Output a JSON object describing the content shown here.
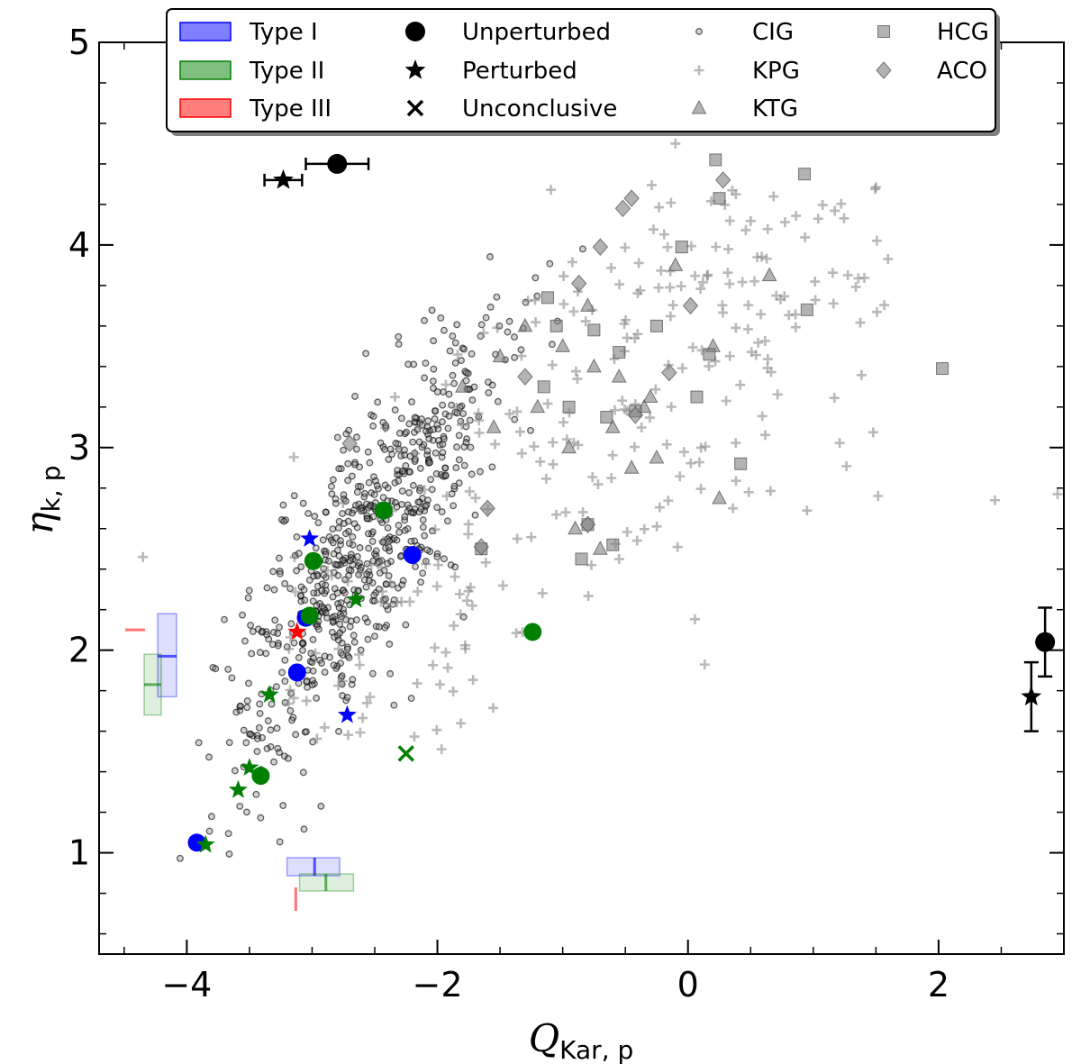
{
  "chart_data": {
    "type": "scatter",
    "xlabel": {
      "main": "Q",
      "sub": "Kar, p"
    },
    "ylabel": {
      "main": "η",
      "sub": "k, p"
    },
    "xlim": [
      -4.7,
      3.0
    ],
    "ylim": [
      0.5,
      5.0
    ],
    "xticks": [
      -4,
      -2,
      0,
      2
    ],
    "xtick_labels": [
      "−4",
      "−2",
      "0",
      "2"
    ],
    "yticks": [
      1,
      2,
      3,
      4,
      5
    ],
    "ytick_labels": [
      "1",
      "2",
      "3",
      "4",
      "5"
    ],
    "legend_position": "top",
    "legend": [
      {
        "label": "Type I",
        "kind": "patch",
        "color": "#0000ff"
      },
      {
        "label": "Type II",
        "kind": "patch",
        "color": "#008000"
      },
      {
        "label": "Type III",
        "kind": "patch",
        "color": "#ff0000"
      },
      {
        "label": "Unperturbed",
        "kind": "marker",
        "marker": "circle"
      },
      {
        "label": "Perturbed",
        "kind": "marker",
        "marker": "star"
      },
      {
        "label": "Unconclusive",
        "kind": "marker",
        "marker": "x"
      },
      {
        "label": "CIG",
        "kind": "marker",
        "marker": "small-circle"
      },
      {
        "label": "KPG",
        "kind": "marker",
        "marker": "plus"
      },
      {
        "label": "KTG",
        "kind": "marker",
        "marker": "triangle"
      },
      {
        "label": "HCG",
        "kind": "marker",
        "marker": "square"
      },
      {
        "label": "ACO",
        "kind": "marker",
        "marker": "diamond"
      }
    ],
    "colors": {
      "type1": "#0000ff",
      "type2": "#008000",
      "type3": "#ff0000",
      "reference": "#808080",
      "sample": "#000000"
    },
    "sample_points": [
      {
        "type": "I",
        "status": "unperturbed",
        "x": -3.92,
        "y": 1.05
      },
      {
        "type": "I",
        "status": "unperturbed",
        "x": -3.12,
        "y": 1.89
      },
      {
        "type": "I",
        "status": "unperturbed",
        "x": -3.05,
        "y": 2.16
      },
      {
        "type": "I",
        "status": "unperturbed",
        "x": -2.2,
        "y": 2.47
      },
      {
        "type": "I",
        "status": "perturbed",
        "x": -3.02,
        "y": 2.55
      },
      {
        "type": "I",
        "status": "perturbed",
        "x": -2.72,
        "y": 1.68
      },
      {
        "type": "II",
        "status": "unperturbed",
        "x": -3.41,
        "y": 1.38
      },
      {
        "type": "II",
        "status": "unperturbed",
        "x": -2.99,
        "y": 2.44
      },
      {
        "type": "II",
        "status": "unperturbed",
        "x": -2.43,
        "y": 2.69
      },
      {
        "type": "II",
        "status": "unperturbed",
        "x": -1.24,
        "y": 2.09
      },
      {
        "type": "II",
        "status": "unperturbed",
        "x": -3.02,
        "y": 2.17
      },
      {
        "type": "II",
        "status": "perturbed",
        "x": -3.85,
        "y": 1.04
      },
      {
        "type": "II",
        "status": "perturbed",
        "x": -3.59,
        "y": 1.31
      },
      {
        "type": "II",
        "status": "perturbed",
        "x": -3.5,
        "y": 1.42
      },
      {
        "type": "II",
        "status": "perturbed",
        "x": -3.34,
        "y": 1.78
      },
      {
        "type": "II",
        "status": "perturbed",
        "x": -2.65,
        "y": 2.25
      },
      {
        "type": "II",
        "status": "unconclusive",
        "x": -2.25,
        "y": 1.49
      },
      {
        "type": "III",
        "status": "perturbed",
        "x": -3.12,
        "y": 2.09
      }
    ],
    "median_errorbars_top": [
      {
        "status": "unperturbed",
        "x": -2.8,
        "y": 4.4,
        "xerr": 0.25
      },
      {
        "status": "perturbed",
        "x": -3.23,
        "y": 4.32,
        "xerr": 0.15
      }
    ],
    "median_errorbars_right": [
      {
        "status": "unperturbed",
        "x": 2.85,
        "y": 2.04,
        "yerr": 0.17
      },
      {
        "status": "perturbed",
        "x": 2.74,
        "y": 1.77,
        "yerr": 0.17
      }
    ],
    "y_distributions_left": [
      {
        "type": "I",
        "median": 1.97,
        "low": 1.77,
        "high": 2.18
      },
      {
        "type": "II",
        "median": 1.83,
        "low": 1.68,
        "high": 1.98
      },
      {
        "type": "III",
        "median": 2.1,
        "low": 2.1,
        "high": 2.1
      }
    ],
    "x_distributions_bottom": [
      {
        "type": "I",
        "median": -2.98,
        "low": -3.2,
        "high": -2.78
      },
      {
        "type": "II",
        "median": -2.89,
        "low": -3.1,
        "high": -2.67
      },
      {
        "type": "III",
        "median": -3.13,
        "low": -3.13,
        "high": -3.13
      }
    ],
    "reference_samples": [
      {
        "name": "CIG",
        "marker": "small-circle",
        "count": 700,
        "distribution": {
          "x_mean": -2.6,
          "x_sd": 0.55,
          "y_at_mean": 2.5,
          "slope": 0.85,
          "y_sd": 0.32
        }
      },
      {
        "name": "KPG",
        "marker": "plus",
        "count": 280,
        "distribution": {
          "x_min": -3.3,
          "x_max": 1.6,
          "y_min": 1.5,
          "y_max": 4.3
        },
        "extra_points": [
          [
            2.45,
            2.74
          ],
          [
            2.95,
            2.77
          ],
          [
            -4.35,
            2.46
          ],
          [
            -0.1,
            4.5
          ]
        ]
      },
      {
        "name": "KTG",
        "marker": "triangle",
        "points": [
          [
            -1.3,
            3.6
          ],
          [
            -1.0,
            3.5
          ],
          [
            -0.75,
            3.4
          ],
          [
            -0.6,
            3.1
          ],
          [
            -0.35,
            3.2
          ],
          [
            -0.8,
            3.7
          ],
          [
            -0.1,
            3.9
          ],
          [
            0.2,
            3.5
          ],
          [
            0.65,
            3.85
          ],
          [
            -1.8,
            3.3
          ],
          [
            -1.5,
            3.45
          ],
          [
            -0.45,
            2.9
          ],
          [
            -0.7,
            2.5
          ],
          [
            -0.55,
            3.35
          ],
          [
            -1.2,
            3.2
          ],
          [
            -0.95,
            3.0
          ],
          [
            -0.25,
            2.95
          ],
          [
            -1.55,
            3.1
          ],
          [
            -0.9,
            2.6
          ],
          [
            0.25,
            2.75
          ],
          [
            -0.3,
            3.25
          ]
        ]
      },
      {
        "name": "HCG",
        "marker": "square",
        "points": [
          [
            0.22,
            4.42
          ],
          [
            0.25,
            4.23
          ],
          [
            0.93,
            4.35
          ],
          [
            -0.05,
            3.99
          ],
          [
            -1.12,
            3.74
          ],
          [
            -1.05,
            3.6
          ],
          [
            -0.75,
            3.58
          ],
          [
            -0.55,
            3.47
          ],
          [
            -0.25,
            3.6
          ],
          [
            0.17,
            3.46
          ],
          [
            0.95,
            3.68
          ],
          [
            2.03,
            3.39
          ],
          [
            -1.15,
            3.3
          ],
          [
            -0.95,
            3.2
          ],
          [
            -0.65,
            3.15
          ],
          [
            -0.42,
            3.18
          ],
          [
            0.07,
            3.25
          ],
          [
            0.42,
            2.92
          ],
          [
            -0.8,
            2.62
          ],
          [
            -0.85,
            2.45
          ],
          [
            -1.65,
            2.5
          ],
          [
            -0.6,
            2.52
          ]
        ]
      },
      {
        "name": "ACO",
        "marker": "diamond",
        "points": [
          [
            -0.45,
            4.23
          ],
          [
            -0.52,
            4.18
          ],
          [
            0.28,
            4.32
          ],
          [
            -0.7,
            3.99
          ],
          [
            -0.87,
            3.81
          ],
          [
            0.02,
            3.7
          ],
          [
            -0.15,
            3.37
          ],
          [
            -0.42,
            3.16
          ],
          [
            -1.3,
            3.35
          ],
          [
            -1.6,
            2.7
          ],
          [
            -1.65,
            2.51
          ],
          [
            -2.7,
            3.02
          ],
          [
            -0.8,
            2.62
          ]
        ]
      }
    ]
  }
}
